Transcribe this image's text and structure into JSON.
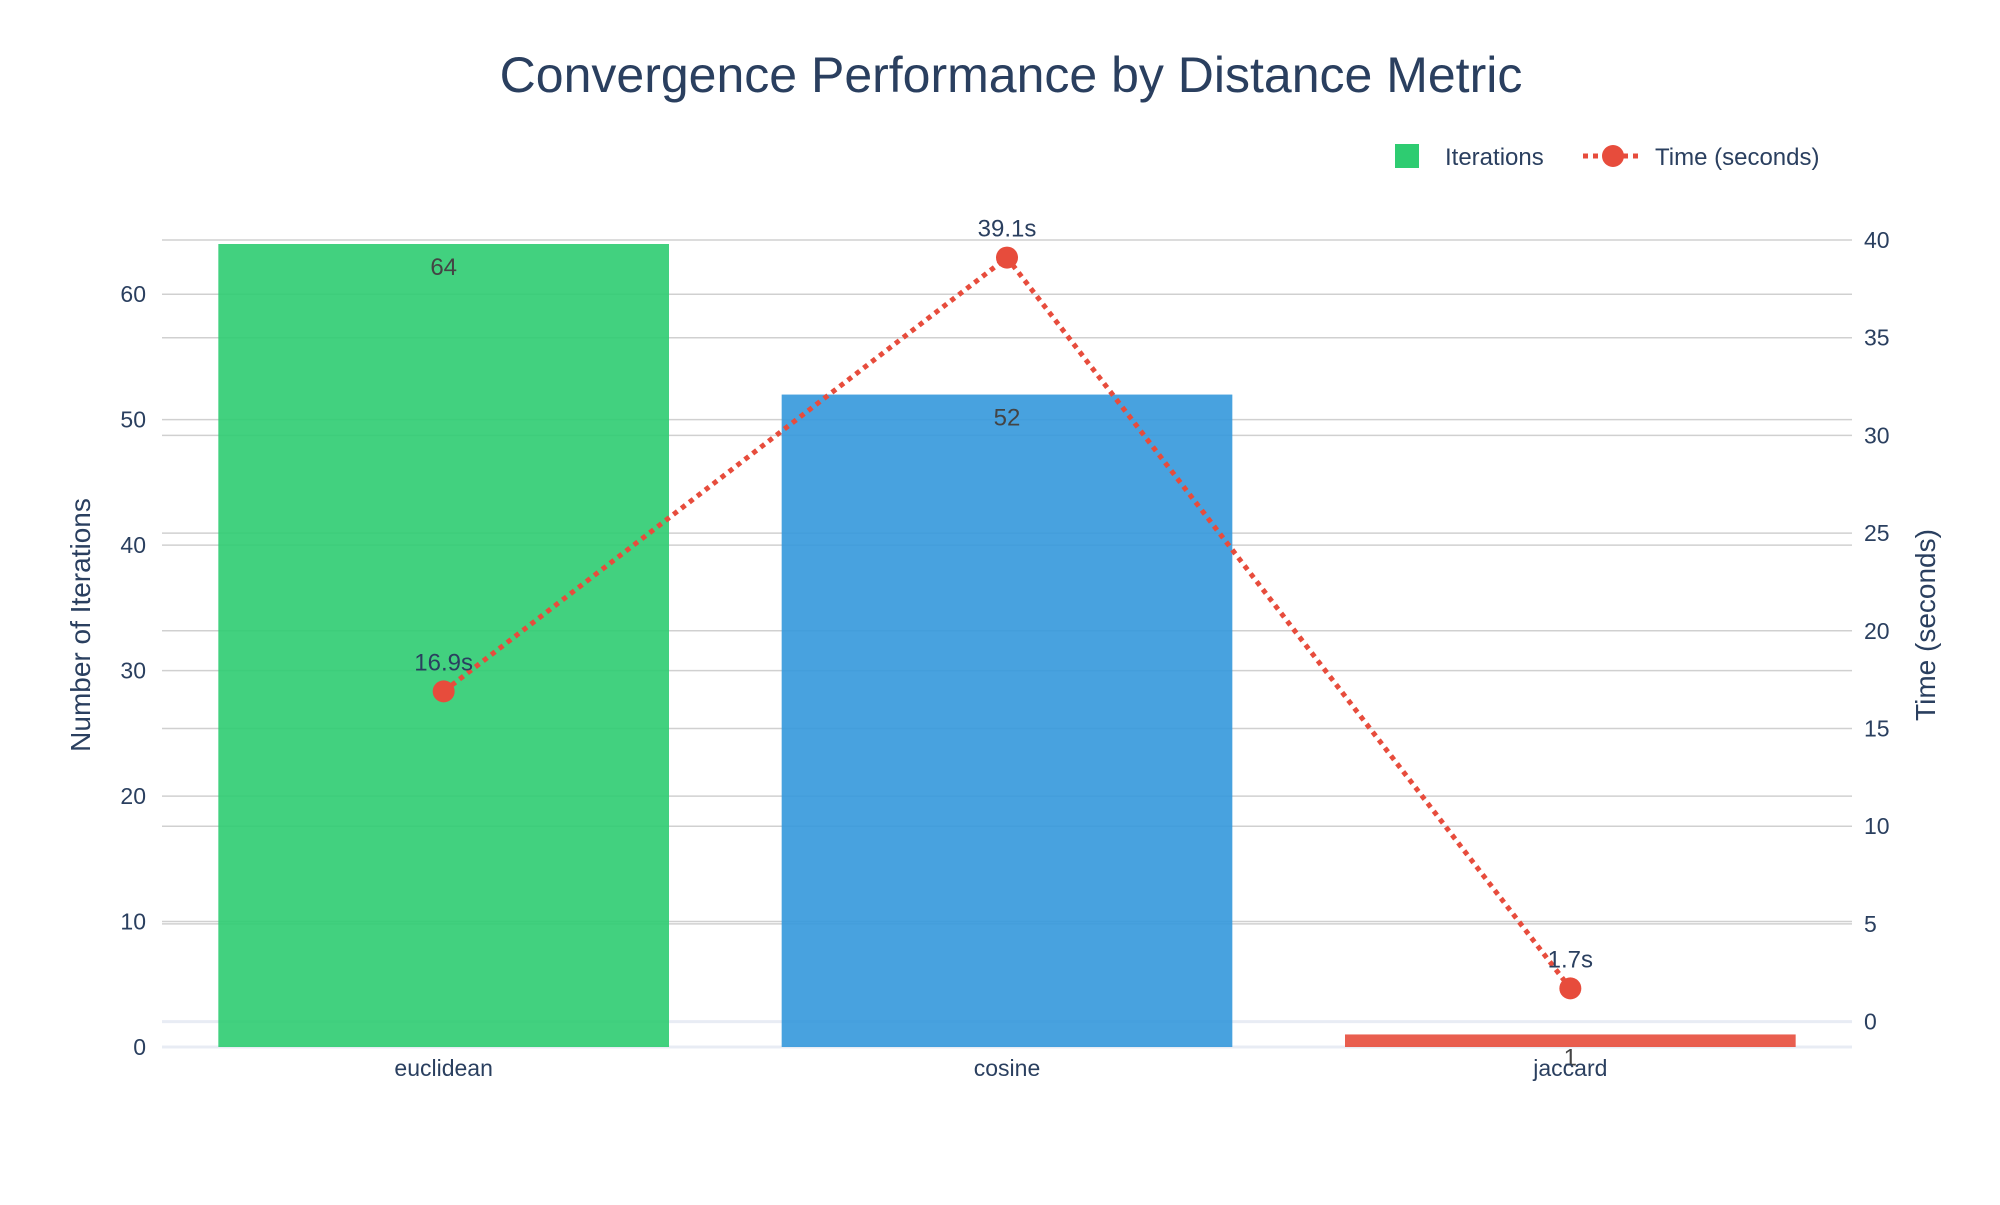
{
  "chart_data": {
    "type": "bar",
    "title": "Convergence Performance by Distance Metric",
    "categories": [
      "euclidean",
      "cosine",
      "jaccard"
    ],
    "series": [
      {
        "name": "Iterations",
        "type": "bar",
        "axis": "left",
        "values": [
          64,
          52,
          1
        ],
        "labels": [
          "64",
          "52",
          "1"
        ],
        "colors": [
          "#2ecc71",
          "#3498db",
          "#e74c3c"
        ]
      },
      {
        "name": "Time (seconds)",
        "type": "line",
        "axis": "right",
        "values": [
          16.9,
          39.1,
          1.7
        ],
        "labels": [
          "16.9s",
          "39.1s",
          "1.7s"
        ],
        "color": "#e74c3c",
        "line_style": "dotted",
        "markers": true
      }
    ],
    "ylabel_left": "Number of Iterations",
    "ylabel_right": "Time (seconds)",
    "ylim_left": [
      0,
      64
    ],
    "yticks_left": [
      0,
      10,
      20,
      30,
      40,
      50,
      60
    ],
    "ylim_right": [
      -1.3,
      40
    ],
    "yticks_right": [
      0,
      5,
      10,
      15,
      20,
      25,
      30,
      35,
      40
    ],
    "grid": true,
    "legend_position": "top-right"
  }
}
